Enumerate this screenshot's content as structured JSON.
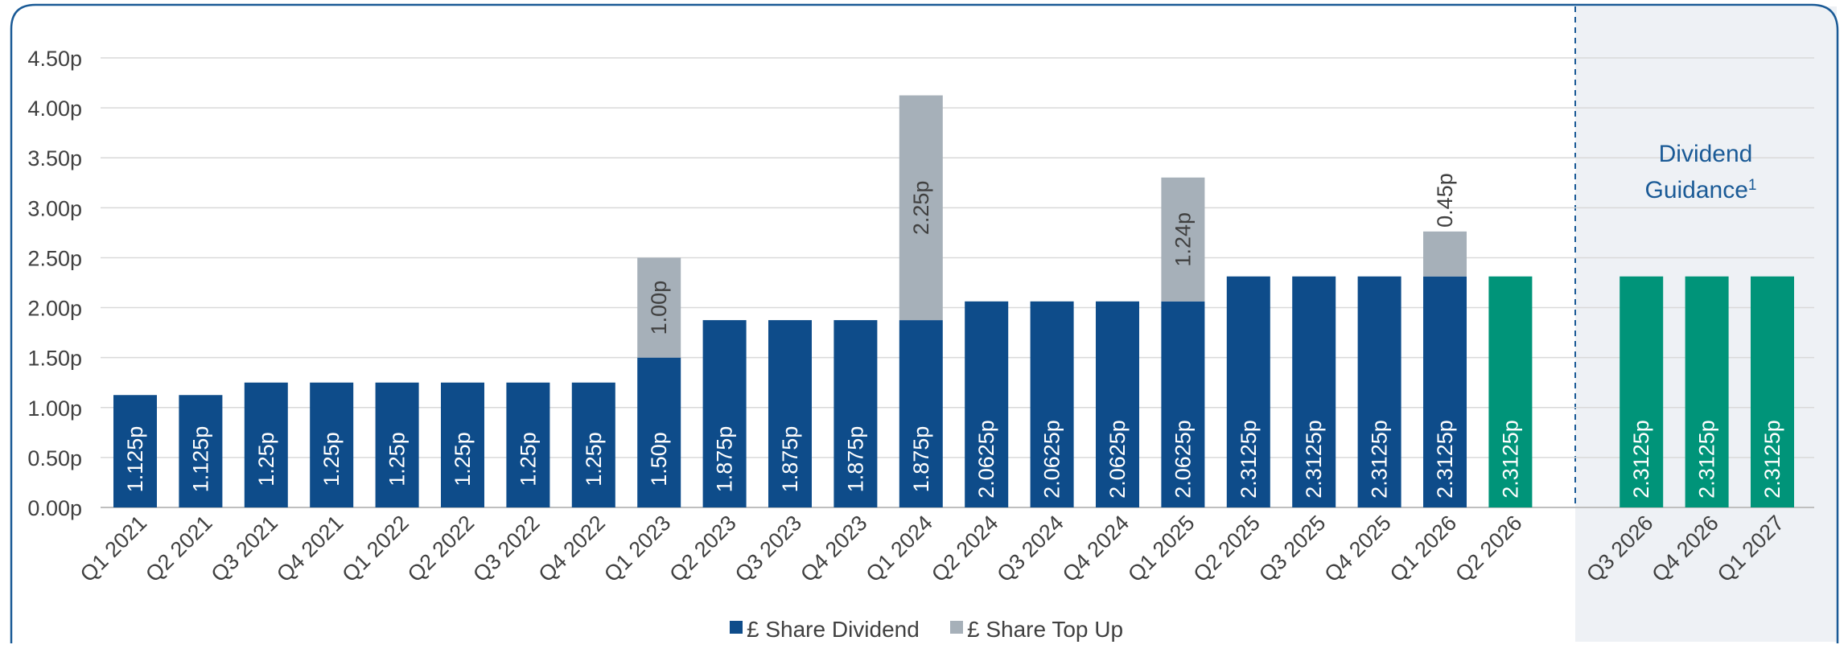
{
  "chart_data": {
    "type": "bar",
    "stacked": true,
    "categories": [
      "Q1 2021",
      "Q2 2021",
      "Q3 2021",
      "Q4 2021",
      "Q1 2022",
      "Q2 2022",
      "Q3 2022",
      "Q4 2022",
      "Q1 2023",
      "Q2 2023",
      "Q3 2023",
      "Q4 2023",
      "Q1 2024",
      "Q2 2024",
      "Q3 2024",
      "Q4 2024",
      "Q1 2025",
      "Q2 2025",
      "Q3 2025",
      "Q4 2025",
      "Q1 2026",
      "Q2 2026",
      "",
      "Q3 2026",
      "Q4 2026",
      "Q1 2027"
    ],
    "series": [
      {
        "name": "£ Share Dividend",
        "values": [
          1.125,
          1.125,
          1.25,
          1.25,
          1.25,
          1.25,
          1.25,
          1.25,
          1.5,
          1.875,
          1.875,
          1.875,
          1.875,
          2.0625,
          2.0625,
          2.0625,
          2.0625,
          2.3125,
          2.3125,
          2.3125,
          2.3125,
          null,
          null,
          null,
          null,
          null
        ],
        "labels": [
          "1.125p",
          "1.125p",
          "1.25p",
          "1.25p",
          "1.25p",
          "1.25p",
          "1.25p",
          "1.25p",
          "1.50p",
          "1.875p",
          "1.875p",
          "1.875p",
          "1.875p",
          "2.0625p",
          "2.0625p",
          "2.0625p",
          "2.0625p",
          "2.3125p",
          "2.3125p",
          "2.3125p",
          "2.3125p",
          "",
          "",
          "",
          "",
          ""
        ]
      },
      {
        "name": "£ Share Top Up",
        "values": [
          null,
          null,
          null,
          null,
          null,
          null,
          null,
          null,
          1.0,
          null,
          null,
          null,
          2.25,
          null,
          null,
          null,
          1.24,
          null,
          null,
          null,
          0.45,
          null,
          null,
          null,
          null,
          null
        ],
        "labels": [
          "",
          "",
          "",
          "",
          "",
          "",
          "",
          "",
          "1.00p",
          "",
          "",
          "",
          "2.25p",
          "",
          "",
          "",
          "1.24p",
          "",
          "",
          "",
          "0.45p",
          "",
          "",
          "",
          "",
          ""
        ]
      },
      {
        "values": [
          null,
          null,
          null,
          null,
          null,
          null,
          null,
          null,
          null,
          null,
          null,
          null,
          null,
          null,
          null,
          null,
          null,
          null,
          null,
          null,
          null,
          2.3125,
          null,
          2.3125,
          2.3125,
          2.3125
        ],
        "labels": [
          "",
          "",
          "",
          "",
          "",
          "",
          "",
          "",
          "",
          "",
          "",
          "",
          "",
          "",
          "",
          "",
          "",
          "",
          "",
          "",
          "",
          "2.3125p",
          "",
          "2.3125p",
          "2.3125p",
          "2.3125p"
        ]
      }
    ],
    "y_ticks": [
      "0.00p",
      "0.50p",
      "1.00p",
      "1.50p",
      "2.00p",
      "2.50p",
      "3.00p",
      "3.50p",
      "4.00p",
      "4.50p"
    ],
    "ylim": [
      0,
      4.5
    ],
    "grid": true,
    "legend": "bottom-center",
    "annotation": {
      "line1": "Dividend",
      "line2": "Guidance",
      "footnote": "1"
    },
    "colors": {
      "dividend": "#0e4c8a",
      "top_up": "#a6b0b9",
      "guidance": "#009479",
      "guidance_bg": "#eef1f5",
      "frame": "#1a5a96",
      "grid": "#d9d9d9",
      "axis_text": "#404040",
      "annotation_text": "#1a5a96"
    }
  }
}
